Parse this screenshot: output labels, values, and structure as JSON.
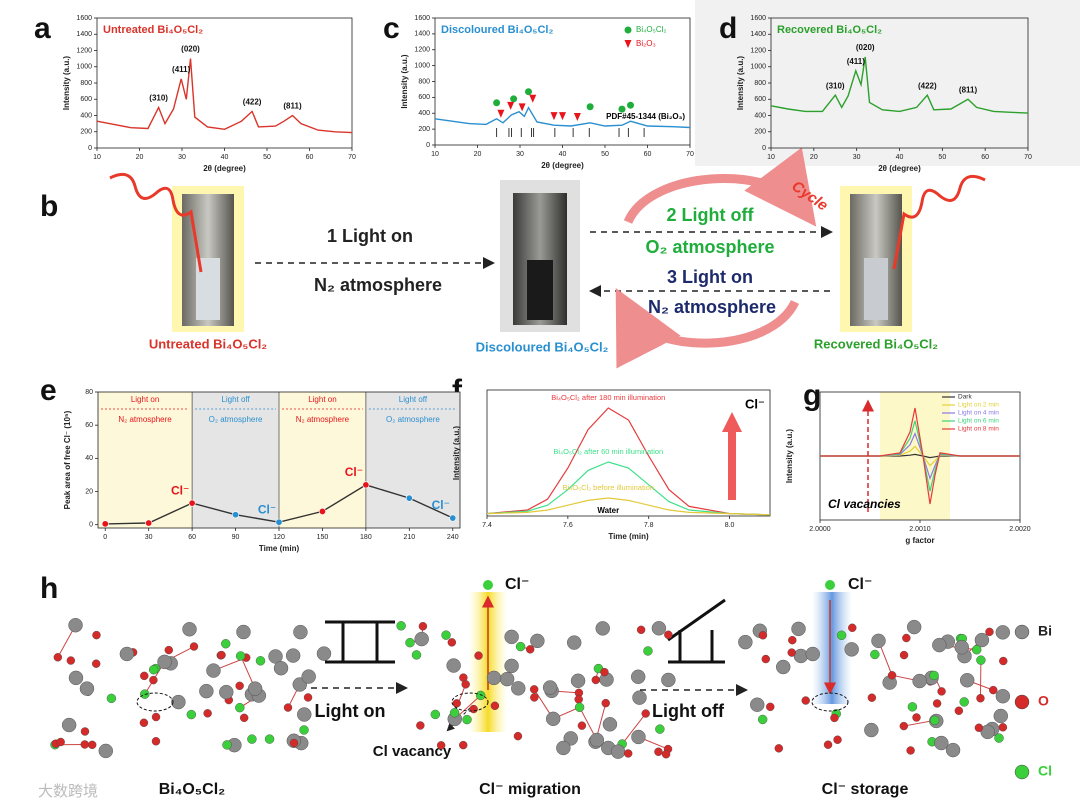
{
  "letters": [
    "a",
    "c",
    "d",
    "b",
    "e",
    "f",
    "g",
    "h"
  ],
  "chart_data": [
    {
      "type": "line",
      "title": "Untreated Bi₄O₅Cl₂",
      "xlabel": "2θ (degree)",
      "ylabel": "Intensity (a.u.)",
      "color": "#d9342b",
      "x": [
        10,
        14,
        18,
        22,
        24.5,
        26,
        28,
        29.8,
        31,
        32,
        33,
        36,
        40,
        44,
        46.5,
        48,
        52,
        54,
        56,
        58,
        62,
        66,
        70
      ],
      "values": [
        330,
        290,
        250,
        240,
        500,
        300,
        480,
        850,
        600,
        1100,
        380,
        260,
        230,
        330,
        450,
        260,
        270,
        330,
        400,
        300,
        220,
        200,
        190
      ],
      "xlim": [
        10,
        70
      ],
      "xticks": [
        10,
        20,
        30,
        40,
        50,
        60,
        70
      ],
      "ylim": [
        0,
        1600
      ],
      "yticks": [
        0,
        200,
        400,
        600,
        800,
        1000,
        1200,
        1400,
        1600
      ],
      "annotations": [
        {
          "text": "(310)",
          "x": 24.5
        },
        {
          "text": "(411)",
          "x": 29.8
        },
        {
          "text": "(020)",
          "x": 32
        },
        {
          "text": "(422)",
          "x": 46.5
        },
        {
          "text": "(811)",
          "x": 56
        }
      ]
    },
    {
      "type": "line",
      "title": "Discoloured Bi₄O₅Cl₂",
      "xlabel": "2θ (degree)",
      "ylabel": "Intensity (a.u.)",
      "color": "#2a8fd0",
      "x": [
        10,
        14,
        18,
        22,
        24.5,
        26,
        28,
        29.8,
        31,
        32,
        34,
        38,
        42,
        46.5,
        50,
        54,
        56,
        60,
        66,
        70
      ],
      "values": [
        330,
        300,
        270,
        260,
        330,
        280,
        380,
        420,
        360,
        470,
        290,
        250,
        240,
        280,
        240,
        250,
        300,
        240,
        230,
        220
      ],
      "xlim": [
        10,
        70
      ],
      "xticks": [
        10,
        20,
        30,
        40,
        50,
        60,
        70
      ],
      "ylim": [
        0,
        1600
      ],
      "yticks": [
        0,
        200,
        400,
        600,
        800,
        1000,
        1200,
        1400,
        1600
      ],
      "markers": [
        {
          "name": "Bi₄O₅Cl₂",
          "color": "#1fae3c",
          "shape": "circle",
          "x": [
            24.5,
            28.5,
            32,
            46.5,
            54,
            56
          ]
        },
        {
          "name": "Bi₂O₃",
          "color": "#e8141b",
          "shape": "triangle",
          "x": [
            25.5,
            27.8,
            30.5,
            33,
            38,
            40,
            43.5
          ]
        }
      ],
      "reference": {
        "label": "PDF#45-1344 (Bi₂O₃)",
        "x": [
          24.5,
          27.4,
          28,
          30.3,
          32.7,
          33.2,
          38.2,
          42.5,
          46.3,
          53.3,
          55.5,
          59.2
        ]
      }
    },
    {
      "type": "line",
      "title": "Recovered Bi₄O₅Cl₂",
      "xlabel": "2θ (degree)",
      "ylabel": "Intensity (a.u.)",
      "color": "#2ca02c",
      "x": [
        10,
        14,
        18,
        22,
        25,
        26.5,
        28,
        29.8,
        31,
        32,
        33,
        36,
        40,
        44,
        46.5,
        48,
        52,
        54,
        56,
        58,
        62,
        66,
        70
      ],
      "values": [
        520,
        480,
        450,
        450,
        650,
        500,
        640,
        950,
        780,
        1120,
        560,
        470,
        450,
        500,
        650,
        470,
        480,
        540,
        600,
        500,
        450,
        440,
        430
      ],
      "xlim": [
        10,
        70
      ],
      "xticks": [
        10,
        20,
        30,
        40,
        50,
        60,
        70
      ],
      "ylim": [
        0,
        1600
      ],
      "yticks": [
        0,
        200,
        400,
        600,
        800,
        1000,
        1200,
        1400,
        1600
      ],
      "annotations": [
        {
          "text": "(310)",
          "x": 25
        },
        {
          "text": "(411)",
          "x": 29.8
        },
        {
          "text": "(020)",
          "x": 32
        },
        {
          "text": "(422)",
          "x": 46.5
        },
        {
          "text": "(811)",
          "x": 56
        }
      ]
    },
    {
      "type": "line",
      "xlabel": "Time (min)",
      "ylabel": "Peak area of free Cl⁻ (10⁵)",
      "color": "#333333",
      "x": [
        0,
        30,
        60,
        90,
        120,
        150,
        180,
        210,
        240
      ],
      "values": [
        0.5,
        1,
        13,
        6,
        1.5,
        8,
        24,
        16,
        4
      ],
      "point_colors": [
        "#e8141b",
        "#e8141b",
        "#e8141b",
        "#2a8fd0",
        "#2a8fd0",
        "#e8141b",
        "#e8141b",
        "#2a8fd0",
        "#2a8fd0"
      ],
      "xlim": [
        -5,
        245
      ],
      "xticks": [
        0,
        30,
        60,
        90,
        120,
        150,
        180,
        210,
        240
      ],
      "ylim": [
        -2,
        80
      ],
      "yticks": [
        0,
        20,
        40,
        60,
        80
      ],
      "regions": [
        {
          "label": "Light on",
          "atmosphere": "N₂ atmosphere",
          "from": -5,
          "to": 60,
          "fill": "#fdf8d9",
          "color": "#e8141b"
        },
        {
          "label": "Light off",
          "atmosphere": "O₂ atmosphere",
          "from": 60,
          "to": 120,
          "fill": "#e5e5e5",
          "color": "#2a8fd0"
        },
        {
          "label": "Light on",
          "atmosphere": "N₂ atmosphere",
          "from": 120,
          "to": 180,
          "fill": "#fdf8d9",
          "color": "#e8141b"
        },
        {
          "label": "Light off",
          "atmosphere": "O₂ atmosphere",
          "from": 180,
          "to": 245,
          "fill": "#e5e5e5",
          "color": "#2a8fd0"
        }
      ],
      "annotations": [
        {
          "text": "Cl⁻",
          "x": 60,
          "color": "#e8141b"
        },
        {
          "text": "Cl⁻",
          "x": 120,
          "color": "#2a8fd0"
        },
        {
          "text": "Cl⁻",
          "x": 180,
          "color": "#e8141b"
        },
        {
          "text": "Cl⁻",
          "x": 240,
          "color": "#2a8fd0"
        }
      ]
    },
    {
      "type": "line",
      "xlabel": "Time (min)",
      "ylabel": "Intensity (a.u.)",
      "x": [
        7.4,
        7.5,
        7.55,
        7.6,
        7.65,
        7.7,
        7.75,
        7.8,
        7.85,
        7.9,
        8.0,
        8.1
      ],
      "series": [
        {
          "name": "Bi₄O₅Cl₂ after 180 min illumination",
          "color": "#e8393b",
          "values": [
            2,
            5,
            14,
            40,
            72,
            90,
            80,
            50,
            22,
            8,
            2,
            1
          ]
        },
        {
          "name": "Bi₄O₅Cl₂ after 60 min illumination",
          "color": "#3fe08a",
          "values": [
            2,
            4,
            9,
            22,
            38,
            45,
            40,
            26,
            12,
            5,
            2,
            1
          ]
        },
        {
          "name": "Bi₄O₅Cl₂ before illumination",
          "color": "#e3c93a",
          "values": [
            2,
            3,
            5,
            9,
            13,
            15,
            13,
            9,
            5,
            3,
            2,
            1
          ]
        }
      ],
      "xlim": [
        7.4,
        8.1
      ],
      "xticks": [
        7.4,
        7.6,
        7.8,
        {
          "value": 8.0,
          "label": "8.0"
        }
      ],
      "ylim": [
        0,
        105
      ],
      "notes": [
        "Water",
        "Cl⁻"
      ]
    },
    {
      "type": "line",
      "xlabel": "g factor",
      "ylabel": "Intensity (a.u.)",
      "x": [
        2.0,
        2.0006,
        2.0008,
        2.0009,
        2.00095,
        2.00103,
        2.0011,
        2.00115,
        2.0012,
        2.0014,
        2.002
      ],
      "series": [
        {
          "name": "Dark",
          "color": "#333333",
          "values": [
            0,
            0,
            0,
            0.5,
            1,
            0,
            -1,
            -0.5,
            0,
            0,
            0
          ]
        },
        {
          "name": "Light on 2 min",
          "color": "#e3d13a",
          "values": [
            0,
            0,
            0.5,
            3,
            6,
            0,
            -6,
            -3,
            0.5,
            0,
            0
          ]
        },
        {
          "name": "Light on 4 min",
          "color": "#8a7be6",
          "values": [
            0,
            0,
            1,
            7,
            14,
            0,
            -14,
            -6,
            1,
            0,
            0
          ]
        },
        {
          "name": "Light on 6 min",
          "color": "#3fd37a",
          "values": [
            0,
            0,
            1.5,
            11,
            22,
            0,
            -22,
            -9,
            1.5,
            0,
            0
          ]
        },
        {
          "name": "Light on 8 min",
          "color": "#e8393b",
          "values": [
            0,
            0,
            2,
            15,
            30,
            0,
            -30,
            -12,
            2,
            0,
            0
          ]
        }
      ],
      "xlim": [
        2.0,
        2.002
      ],
      "xticks": [
        {
          "value": 2.0,
          "label": "2.0000"
        },
        {
          "value": 2.001,
          "label": "2.0010"
        },
        {
          "value": 2.002,
          "label": "2.0020"
        }
      ],
      "ylim": [
        -40,
        40
      ],
      "highlight": [
        2.0006,
        2.0013
      ],
      "notes": [
        "Cl vacancies"
      ]
    }
  ],
  "diagram_b": {
    "untreated": "Untreated Bi₄O₅Cl₂",
    "discoloured": "Discoloured Bi₄O₅Cl₂",
    "recovered": "Recovered Bi₄O₅Cl₂",
    "step1": "1    Light on",
    "step1_gas": "N₂ atmosphere",
    "step2": "2  Light off",
    "step2_gas": "O₂ atmosphere",
    "step3": "3  Light on",
    "step3_gas": "N₂ atmosphere",
    "cycle": "Cycle"
  },
  "diagram_h": {
    "cl_top_1": "Cl⁻",
    "cl_top_2": "Cl⁻",
    "light_on": "Light on",
    "light_off": "Light off",
    "vacancy": "Cl vacancy",
    "caption_1": "Bi₄O₅Cl₂",
    "caption_2": "Cl⁻ migration",
    "caption_3": "Cl⁻ storage",
    "legend": [
      {
        "name": "Bi",
        "color": "#8a8a8a"
      },
      {
        "name": "O",
        "color": "#d42a2a"
      },
      {
        "name": "Cl",
        "color": "#3ccf3c"
      }
    ]
  },
  "watermark": "大数跨境"
}
